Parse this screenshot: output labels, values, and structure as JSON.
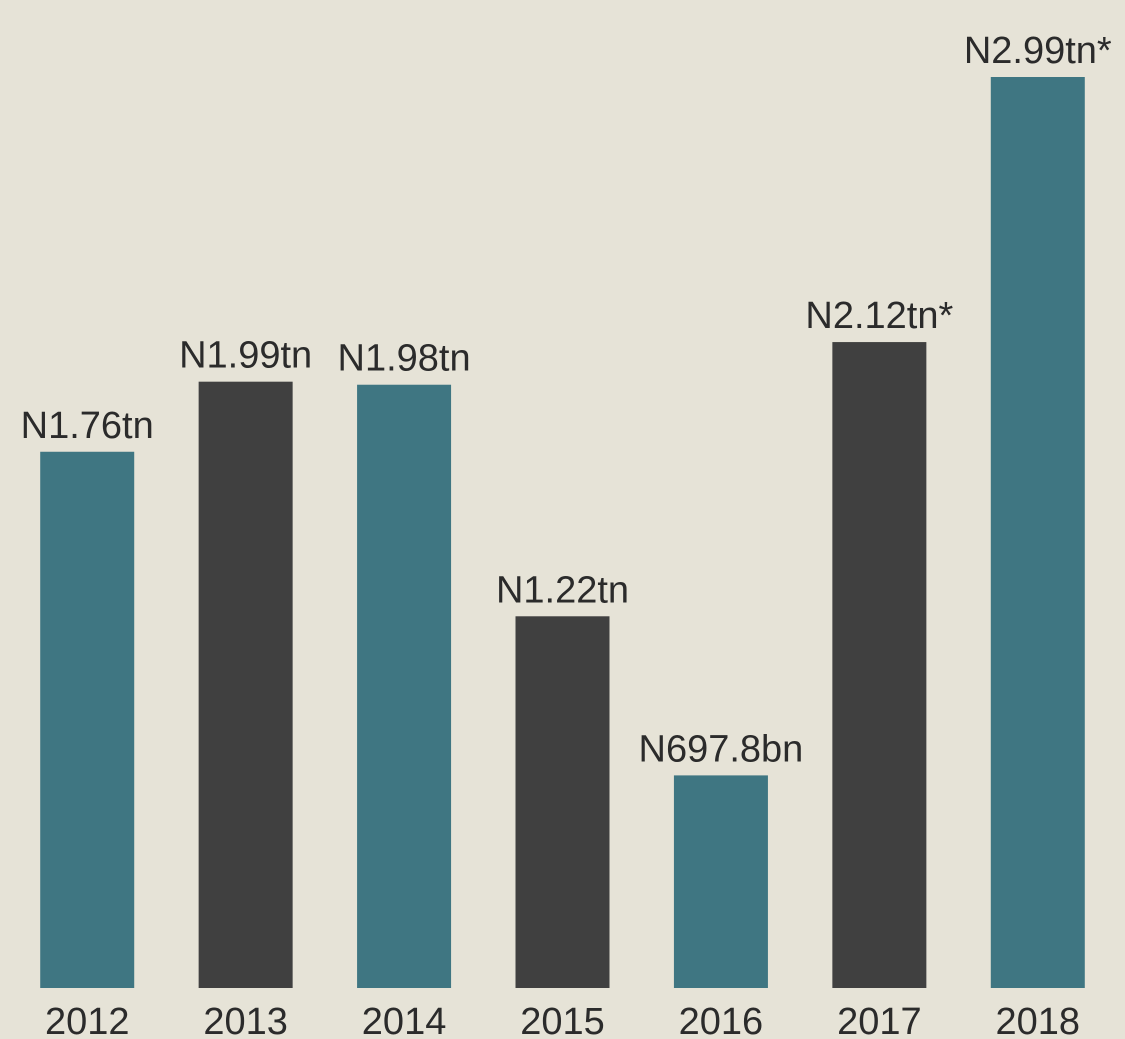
{
  "chart_data": {
    "type": "bar",
    "categories": [
      "2012",
      "2013",
      "2014",
      "2015",
      "2016",
      "2017",
      "2018"
    ],
    "values": [
      1.76,
      1.99,
      1.98,
      1.22,
      0.6978,
      2.12,
      2.99
    ],
    "value_labels": [
      "N1.76tn",
      "N1.99tn",
      "N1.98tn",
      "N1.22tn",
      "N697.8bn",
      "N2.12tn*",
      "N2.99tn*"
    ],
    "colors": [
      "#3f7682",
      "#404040",
      "#3f7682",
      "#404040",
      "#3f7682",
      "#404040",
      "#3f7682"
    ]
  }
}
